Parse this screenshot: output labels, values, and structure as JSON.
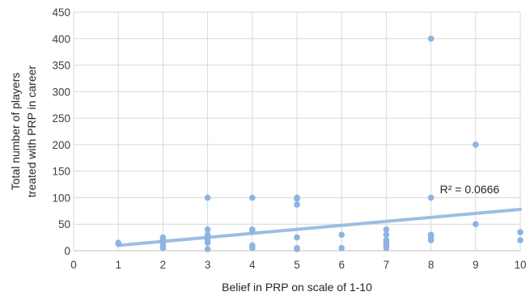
{
  "chart_data": {
    "type": "scatter",
    "title": "",
    "xlabel": "Belief in PRP on scale of 1-10",
    "ylabel_lines": [
      "Total number of players",
      "treated with PRP in career"
    ],
    "xlim": [
      0,
      10
    ],
    "ylim": [
      0,
      450
    ],
    "x_ticks": [
      "0",
      "1",
      "2",
      "3",
      "4",
      "5",
      "6",
      "7",
      "8",
      "9",
      "10"
    ],
    "y_ticks": [
      "0",
      "50",
      "100",
      "150",
      "200",
      "250",
      "300",
      "350",
      "400",
      "450"
    ],
    "grid": "vertical and horizontal, light gray",
    "legend": "none",
    "colors": {
      "points": "#8db3e2",
      "trendline": "#9dbde3",
      "grid": "#d9d9d9"
    },
    "points": [
      {
        "x": 1,
        "y": 15
      },
      {
        "x": 1,
        "y": 13
      },
      {
        "x": 2,
        "y": 25
      },
      {
        "x": 2,
        "y": 20
      },
      {
        "x": 2,
        "y": 15
      },
      {
        "x": 2,
        "y": 10
      },
      {
        "x": 2,
        "y": 5
      },
      {
        "x": 3,
        "y": 100
      },
      {
        "x": 3,
        "y": 40
      },
      {
        "x": 3,
        "y": 30
      },
      {
        "x": 3,
        "y": 25
      },
      {
        "x": 3,
        "y": 20
      },
      {
        "x": 3,
        "y": 15
      },
      {
        "x": 3,
        "y": 3
      },
      {
        "x": 4,
        "y": 100
      },
      {
        "x": 4,
        "y": 40
      },
      {
        "x": 4,
        "y": 38
      },
      {
        "x": 4,
        "y": 10
      },
      {
        "x": 4,
        "y": 8
      },
      {
        "x": 4,
        "y": 5
      },
      {
        "x": 5,
        "y": 100
      },
      {
        "x": 5,
        "y": 98
      },
      {
        "x": 5,
        "y": 87
      },
      {
        "x": 5,
        "y": 25
      },
      {
        "x": 5,
        "y": 5
      },
      {
        "x": 5,
        "y": 3
      },
      {
        "x": 6,
        "y": 30
      },
      {
        "x": 6,
        "y": 5
      },
      {
        "x": 7,
        "y": 40
      },
      {
        "x": 7,
        "y": 30
      },
      {
        "x": 7,
        "y": 20
      },
      {
        "x": 7,
        "y": 15
      },
      {
        "x": 7,
        "y": 12
      },
      {
        "x": 7,
        "y": 8
      },
      {
        "x": 7,
        "y": 5
      },
      {
        "x": 8,
        "y": 400
      },
      {
        "x": 8,
        "y": 100
      },
      {
        "x": 8,
        "y": 30
      },
      {
        "x": 8,
        "y": 25
      },
      {
        "x": 8,
        "y": 20
      },
      {
        "x": 9,
        "y": 200
      },
      {
        "x": 9,
        "y": 50
      },
      {
        "x": 10,
        "y": 35
      },
      {
        "x": 10,
        "y": 20
      }
    ],
    "trendline": {
      "type": "linear",
      "x": [
        1,
        10
      ],
      "y": [
        10,
        78
      ]
    },
    "annotation": {
      "label": "R² = 0.0666",
      "x": 8.2,
      "y": 108
    }
  }
}
